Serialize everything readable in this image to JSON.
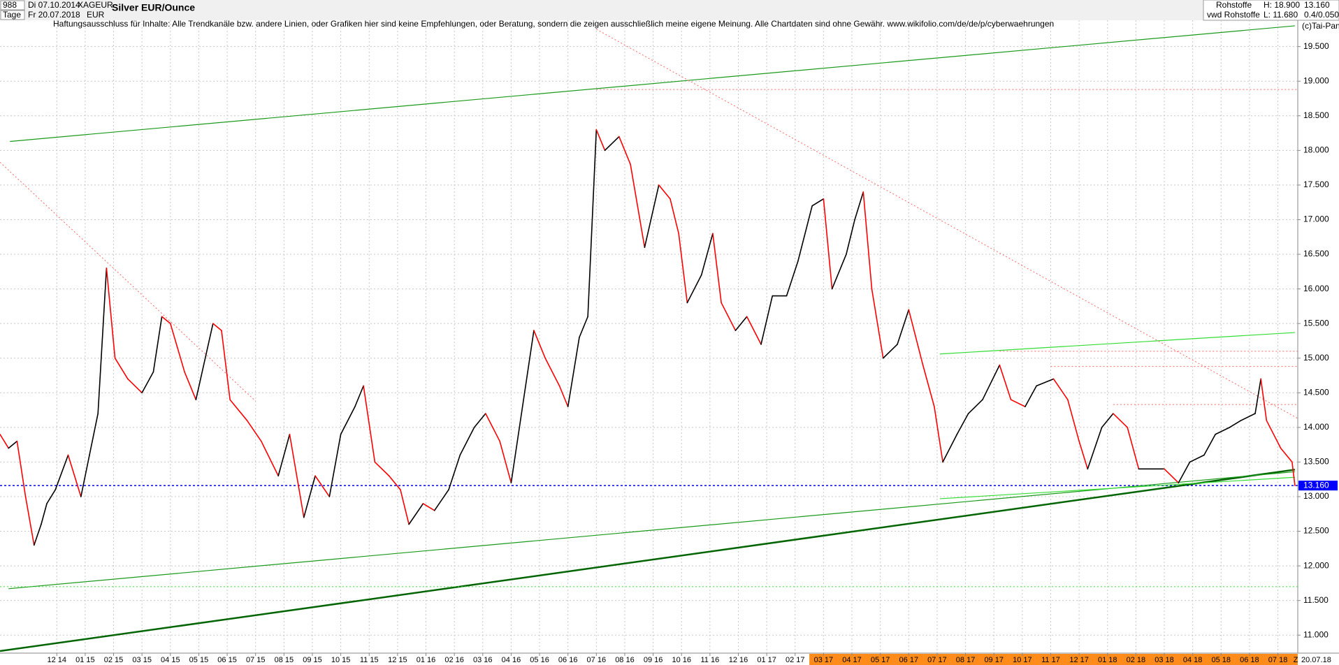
{
  "header": {
    "id": "988",
    "period": "Tage",
    "start": "Di 07.10.2014",
    "end": "Fr 20.07.2018",
    "symbol": "XAGEUR",
    "currency": "EUR",
    "title": "Silver EUR/Ounce",
    "group": "Rohstoffe",
    "source": "vwd Rohstoffe",
    "high": "H: 18.900",
    "low": "L: 11.680",
    "last": "13.160",
    "change": "0.4/0.050"
  },
  "chart_data": {
    "type": "line",
    "disclaimer": "Haftungsausschluss für Inhalte: Alle Trendkanäle bzw. andere Linien, oder Grafiken hier sind keine Empfehlungen, oder Beratung, sondern die zeigen ausschließlich meine eigene Meinung. Alle Chartdaten sind ohne Gewähr.  www.wikifolio.com/de/de/p/cyberwaehrungen",
    "copyright": "(c)Tai-Pan",
    "z_label": "Z",
    "end_label": "20.07.18",
    "color_up": "#000000",
    "color_down": "#ff0000",
    "x": [
      0.0,
      0.3,
      0.6,
      0.9,
      1.2,
      1.45,
      1.65,
      1.95,
      2.4,
      2.85,
      3.15,
      3.45,
      3.75,
      4.05,
      4.5,
      5.0,
      5.4,
      5.7,
      6.0,
      6.5,
      6.9,
      7.5,
      7.8,
      8.1,
      8.7,
      9.2,
      9.8,
      10.2,
      10.7,
      11.1,
      11.6,
      12.0,
      12.5,
      12.8,
      13.2,
      13.7,
      14.1,
      14.4,
      14.9,
      15.3,
      15.8,
      16.2,
      16.7,
      17.1,
      17.6,
      18.0,
      18.4,
      18.8,
      19.2,
      19.7,
      20.0,
      20.4,
      20.7,
      21.0,
      21.3,
      21.8,
      22.2,
      22.7,
      23.2,
      23.6,
      23.9,
      24.2,
      24.7,
      25.1,
      25.4,
      25.9,
      26.3,
      26.8,
      27.2,
      27.7,
      28.1,
      28.6,
      29.0,
      29.3,
      29.8,
      30.1,
      30.4,
      30.7,
      31.1,
      31.6,
      32.0,
      32.5,
      32.9,
      33.2,
      33.7,
      34.1,
      34.6,
      35.2,
      35.6,
      36.1,
      36.5,
      37.1,
      37.6,
      38.0,
      38.3,
      38.8,
      39.2,
      39.7,
      40.1,
      40.6,
      41.0,
      41.5,
      41.9,
      42.4,
      42.8,
      43.3,
      43.7,
      44.2,
      44.4,
      44.6,
      45.1,
      45.5,
      45.6
    ],
    "values": [
      13.9,
      13.7,
      13.8,
      13.0,
      12.3,
      12.6,
      12.9,
      13.1,
      13.6,
      13.0,
      13.6,
      14.2,
      16.3,
      15.0,
      14.7,
      14.5,
      14.8,
      15.6,
      15.5,
      14.8,
      14.4,
      15.5,
      15.4,
      14.4,
      14.1,
      13.8,
      13.3,
      13.9,
      12.7,
      13.3,
      13.0,
      13.9,
      14.3,
      14.6,
      13.5,
      13.3,
      13.1,
      12.6,
      12.9,
      12.8,
      13.1,
      13.6,
      14.0,
      14.2,
      13.8,
      13.2,
      14.3,
      15.4,
      15.0,
      14.6,
      14.3,
      15.3,
      15.6,
      18.3,
      18.0,
      18.2,
      17.8,
      16.6,
      17.5,
      17.3,
      16.8,
      15.8,
      16.2,
      16.8,
      15.8,
      15.4,
      15.6,
      15.2,
      15.9,
      15.9,
      16.4,
      17.2,
      17.3,
      16.0,
      16.5,
      17.0,
      17.4,
      16.0,
      15.0,
      15.2,
      15.7,
      14.9,
      14.3,
      13.5,
      13.9,
      14.2,
      14.4,
      14.9,
      14.4,
      14.3,
      14.6,
      14.7,
      14.4,
      13.8,
      13.4,
      14.0,
      14.2,
      14.0,
      13.4,
      13.4,
      13.4,
      13.2,
      13.5,
      13.6,
      13.9,
      14.0,
      14.1,
      14.2,
      14.7,
      14.1,
      13.7,
      13.5,
      13.16
    ],
    "xlim": [
      0,
      45.7
    ],
    "ylim": [
      10.74,
      19.88
    ],
    "yticks": [
      {
        "value": 11,
        "label": "11.000"
      },
      {
        "value": 11.5,
        "label": "11.500"
      },
      {
        "value": 12,
        "label": "12.000"
      },
      {
        "value": 12.5,
        "label": "12.500"
      },
      {
        "value": 13,
        "label": "13.000"
      },
      {
        "value": 13.5,
        "label": "13.500"
      },
      {
        "value": 14,
        "label": "14.000"
      },
      {
        "value": 14.5,
        "label": "14.500"
      },
      {
        "value": 15,
        "label": "15.000"
      },
      {
        "value": 15.5,
        "label": "15.500"
      },
      {
        "value": 16,
        "label": "16.000"
      },
      {
        "value": 16.5,
        "label": "16.500"
      },
      {
        "value": 17,
        "label": "17.000"
      },
      {
        "value": 17.5,
        "label": "17.500"
      },
      {
        "value": 18,
        "label": "18.000"
      },
      {
        "value": 18.5,
        "label": "18.500"
      },
      {
        "value": 19,
        "label": "19.000"
      },
      {
        "value": 19.5,
        "label": "19.500"
      }
    ],
    "xticks": [
      {
        "value": 2,
        "label": "12 14"
      },
      {
        "value": 3,
        "label": "01 15"
      },
      {
        "value": 4,
        "label": "02 15"
      },
      {
        "value": 5,
        "label": "03 15"
      },
      {
        "value": 6,
        "label": "04 15"
      },
      {
        "value": 7,
        "label": "05 15"
      },
      {
        "value": 8,
        "label": "06 15"
      },
      {
        "value": 9,
        "label": "07 15"
      },
      {
        "value": 10,
        "label": "08 15"
      },
      {
        "value": 11,
        "label": "09 15"
      },
      {
        "value": 12,
        "label": "10 15"
      },
      {
        "value": 13,
        "label": "11 15"
      },
      {
        "value": 14,
        "label": "12 15"
      },
      {
        "value": 15,
        "label": "01 16"
      },
      {
        "value": 16,
        "label": "02 16"
      },
      {
        "value": 17,
        "label": "03 16"
      },
      {
        "value": 18,
        "label": "04 16"
      },
      {
        "value": 19,
        "label": "05 16"
      },
      {
        "value": 20,
        "label": "06 16"
      },
      {
        "value": 21,
        "label": "07 16"
      },
      {
        "value": 22,
        "label": "08 16"
      },
      {
        "value": 23,
        "label": "09 16"
      },
      {
        "value": 24,
        "label": "10 16"
      },
      {
        "value": 25,
        "label": "11 16"
      },
      {
        "value": 26,
        "label": "12 16"
      },
      {
        "value": 27,
        "label": "01 17"
      },
      {
        "value": 28,
        "label": "02 17"
      },
      {
        "value": 29,
        "label": "03 17"
      },
      {
        "value": 30,
        "label": "04 17"
      },
      {
        "value": 31,
        "label": "05 17"
      },
      {
        "value": 32,
        "label": "06 17"
      },
      {
        "value": 33,
        "label": "07 17"
      },
      {
        "value": 34,
        "label": "08 17"
      },
      {
        "value": 35,
        "label": "09 17"
      },
      {
        "value": 36,
        "label": "10 17"
      },
      {
        "value": 37,
        "label": "11 17"
      },
      {
        "value": 38,
        "label": "12 17"
      },
      {
        "value": 39,
        "label": "01 18"
      },
      {
        "value": 40,
        "label": "02 18"
      },
      {
        "value": 41,
        "label": "03 18"
      },
      {
        "value": 42,
        "label": "04 18"
      },
      {
        "value": 43,
        "label": "05 18"
      },
      {
        "value": 44,
        "label": "06 18"
      },
      {
        "value": 45,
        "label": "07 18"
      }
    ],
    "grid": true,
    "price_line": {
      "value": 13.16,
      "label": "13.160",
      "color": "#0000ff"
    },
    "lines": [
      {
        "x": [
          0,
          45.6
        ],
        "y": [
          10.77,
          13.39
        ],
        "color": "#006400",
        "width": 2.5,
        "dash": false
      },
      {
        "x": [
          0.35,
          45.6
        ],
        "y": [
          18.13,
          19.8
        ],
        "color": "#1a9a1a",
        "width": 1.2,
        "dash": false
      },
      {
        "x": [
          0.3,
          45.6
        ],
        "y": [
          11.67,
          13.36
        ],
        "color": "#1a9a1a",
        "width": 1.2,
        "dash": false
      },
      {
        "x": [
          33.1,
          45.6
        ],
        "y": [
          15.06,
          15.37
        ],
        "color": "#33dd33",
        "width": 1.2,
        "dash": false
      },
      {
        "x": [
          33.1,
          45.6
        ],
        "y": [
          12.97,
          13.28
        ],
        "color": "#33dd33",
        "width": 1.2,
        "dash": false
      },
      {
        "x": [
          0,
          45.7
        ],
        "y": [
          11.7,
          11.7
        ],
        "color": "#33dd33",
        "width": 1,
        "dash": true
      },
      {
        "x": [
          0,
          9.0
        ],
        "y": [
          17.83,
          14.38
        ],
        "color": "#ff6666",
        "width": 1,
        "dash": true
      },
      {
        "x": [
          21.0,
          45.7
        ],
        "y": [
          19.75,
          14.13
        ],
        "color": "#ff6666",
        "width": 1,
        "dash": true
      },
      {
        "x": [
          21.0,
          45.7
        ],
        "y": [
          18.88,
          18.88
        ],
        "color": "#ff6666",
        "width": 1,
        "dash": true
      },
      {
        "x": [
          35.2,
          45.7
        ],
        "y": [
          15.1,
          15.1
        ],
        "color": "#ff6666",
        "width": 1,
        "dash": true
      },
      {
        "x": [
          37.0,
          45.7
        ],
        "y": [
          14.88,
          14.88
        ],
        "color": "#ff6666",
        "width": 1,
        "dash": true
      },
      {
        "x": [
          39.2,
          45.7
        ],
        "y": [
          14.33,
          14.33
        ],
        "color": "#ff6666",
        "width": 1,
        "dash": true
      }
    ]
  }
}
